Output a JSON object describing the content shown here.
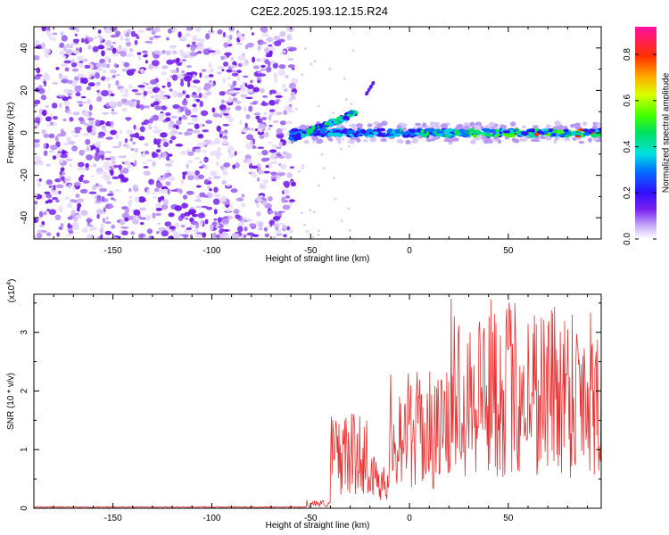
{
  "title": "C2E2.2025.193.12.15.R24",
  "chart_data": [
    {
      "type": "heatmap",
      "xlabel": "Height of straight line (km)",
      "ylabel": "Frequency (Hz)",
      "xlim": [
        -190,
        97
      ],
      "ylim": [
        -50,
        50
      ],
      "xticks": [
        -150,
        -100,
        -50,
        0,
        50
      ],
      "yticks": [
        -40,
        -20,
        0,
        20,
        40
      ],
      "colorbar": {
        "label": "Normalized spectral amplitude",
        "range": [
          0,
          0.92
        ],
        "ticks": [
          0.0,
          0.2,
          0.4,
          0.6,
          0.8
        ]
      },
      "features": [
        {
          "region": "noise",
          "x_range": [
            -190,
            -58
          ],
          "y_range": [
            -50,
            50
          ]
        },
        {
          "region": "carrier",
          "x_range": [
            -60,
            97
          ],
          "y": 0
        },
        {
          "region": "sideband",
          "points": [
            [
              -60,
              -3
            ],
            [
              -45,
              3
            ],
            [
              -35,
              6
            ],
            [
              -27,
              10
            ]
          ]
        },
        {
          "region": "fragment",
          "points": [
            [
              -22,
              18
            ],
            [
              -18,
              24
            ]
          ]
        }
      ]
    },
    {
      "type": "line",
      "xlabel": "Height of straight line (km)",
      "ylabel": "SNR (10 * v/v)",
      "y_multiplier": "(x10^4)",
      "y_multiplier_base": "(x10",
      "y_multiplier_exp": "4",
      "y_multiplier_close": ")",
      "xlim": [
        -190,
        97
      ],
      "ylim": [
        0,
        3.65
      ],
      "xticks": [
        -150,
        -100,
        -50,
        0,
        50
      ],
      "yticks": [
        0,
        1,
        2,
        3
      ],
      "series": [
        {
          "color": "#e83030",
          "segments": [
            {
              "x_range": [
                -190,
                -52
              ],
              "level": 0.02
            },
            {
              "x_range": [
                -52,
                -40
              ],
              "level": 0.08
            },
            {
              "x_range": [
                -40,
                -20
              ],
              "level": 0.9
            },
            {
              "x_range": [
                -20,
                -10
              ],
              "level": 0.5
            },
            {
              "x_range": [
                -10,
                20
              ],
              "level": 1.3
            },
            {
              "x_range": [
                20,
                97
              ],
              "level": 2.0
            }
          ]
        }
      ]
    }
  ]
}
